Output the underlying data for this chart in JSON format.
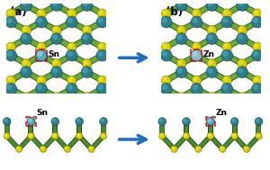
{
  "fig_width": 3.0,
  "fig_height": 1.89,
  "dpi": 100,
  "bg_color": "#ffffff",
  "label_a": "(a)",
  "label_b": "(b)",
  "label_sn": "Sn",
  "label_zn": "Zn",
  "arrow_color": "#1b6dc1",
  "teal_color": "#2e7d8a",
  "teal_light": "#4aadbd",
  "teal_dark": "#1a4a55",
  "yellow_color": "#d4cc00",
  "yellow_light": "#f0e840",
  "yellow_dark": "#8a8400",
  "bond_color": "#6aaa40",
  "bond_dark": "#3a6a20",
  "red_box_color": "#cc1111",
  "highlight_teal": "#55aabb"
}
